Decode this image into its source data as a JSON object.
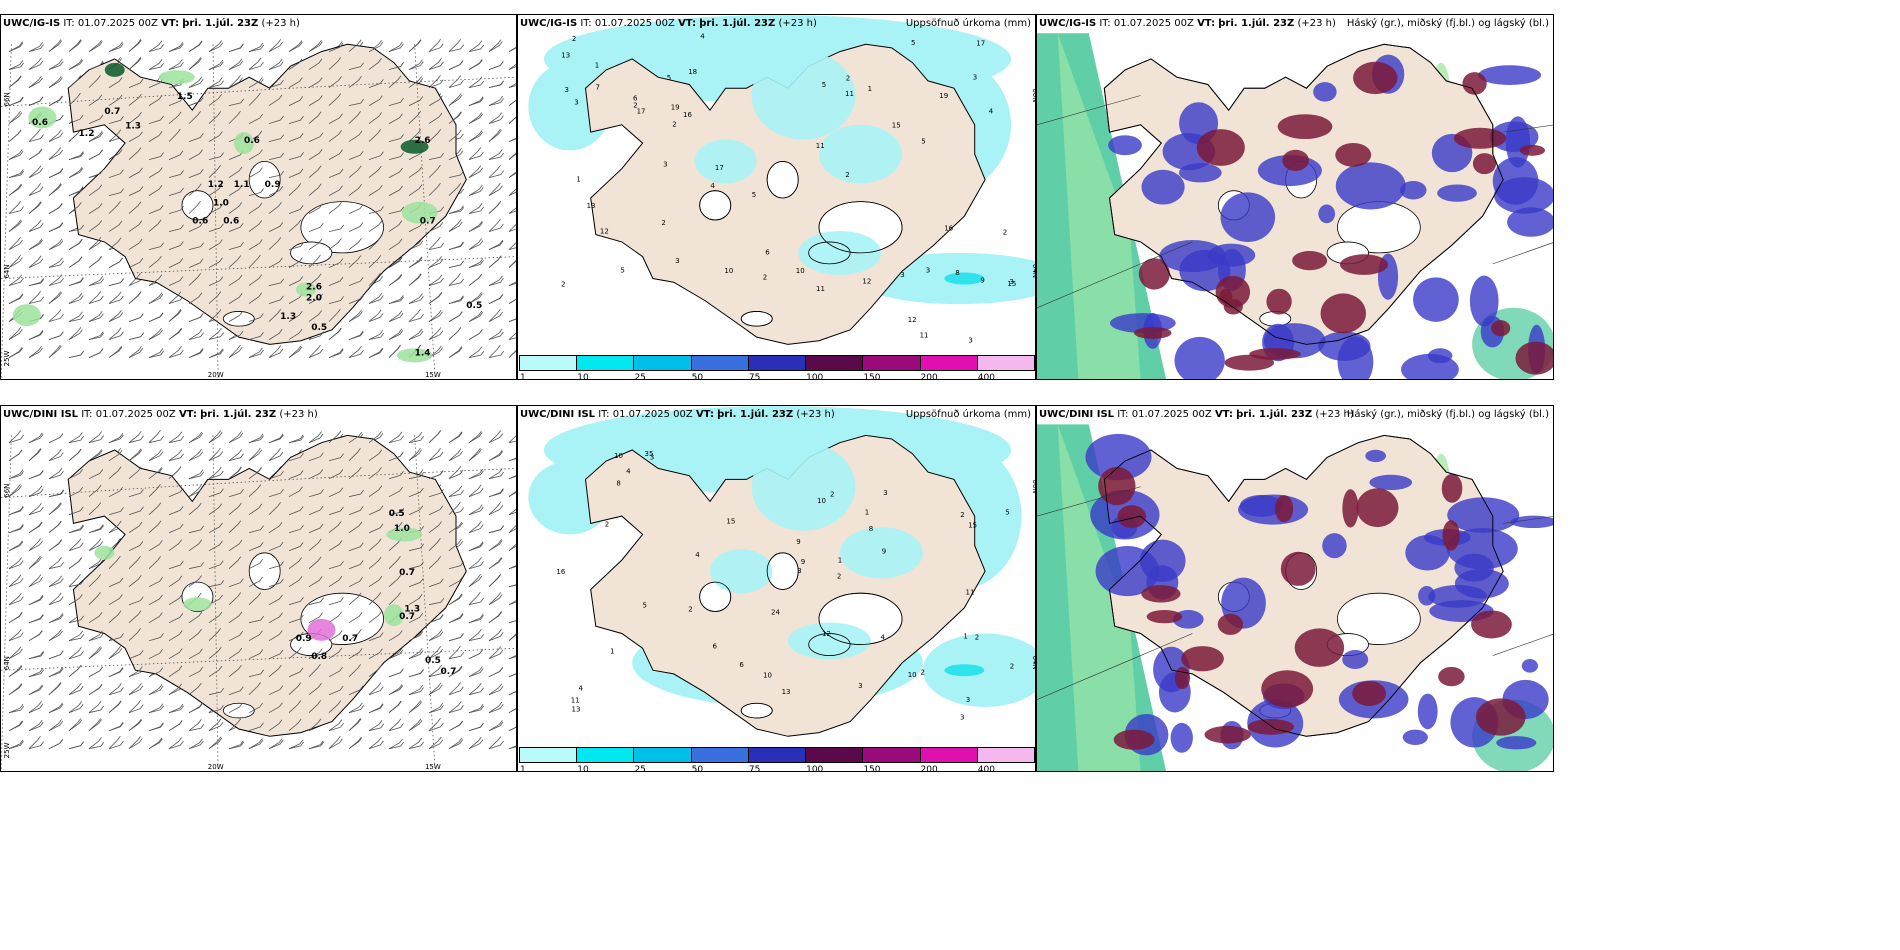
{
  "panels": [
    {
      "model_label": "UWC/IG-IS",
      "it_label": "IT:",
      "it_value": "01.07.2025 00Z",
      "vt_label": "VT:",
      "vt_value": "þri. 1.júl. 23Z",
      "lead": "(+23 h)",
      "right_title": "",
      "variant": "wind",
      "labels": [
        "0.6",
        "1.2",
        "0.7",
        "1.3",
        "1.5",
        "0.6",
        "2.6",
        "1.2",
        "1.1",
        "0.9",
        "1.0",
        "0.6",
        "0.6",
        "0.7",
        "2.6",
        "2.0",
        "1.3",
        "0.5",
        "0.5",
        "1.4"
      ],
      "axis": {
        "lat_top": "66N",
        "lat_mid": "64N",
        "lon_left": "25W",
        "lon_a": "20W",
        "lon_b": "15W"
      }
    },
    {
      "model_label": "UWC/IG-IS",
      "it_label": "IT:",
      "it_value": "01.07.2025 00Z",
      "vt_label": "VT:",
      "vt_value": "þri. 1.júl. 23Z",
      "lead": "(+23 h)",
      "right_title": "Uppsöfnuð úrkoma (mm)",
      "variant": "precip",
      "labels": [
        "1",
        "1",
        "2",
        "2",
        "2",
        "2",
        "3",
        "3",
        "4",
        "6",
        "2",
        "3",
        "13",
        "17",
        "16",
        "18",
        "13",
        "12",
        "2",
        "5",
        "3",
        "3",
        "2",
        "5",
        "3",
        "4",
        "5",
        "7",
        "3",
        "3",
        "9",
        "10",
        "2",
        "12",
        "5",
        "5",
        "17",
        "17",
        "19",
        "15",
        "15",
        "11",
        "8",
        "11",
        "11",
        "12",
        "19",
        "1",
        "6",
        "10",
        "16",
        "11",
        "2",
        "3",
        "4",
        "5"
      ],
      "axis": {
        "lat_top": "66N",
        "lat_mid": "64N"
      }
    },
    {
      "model_label": "UWC/IG-IS",
      "it_label": "IT:",
      "it_value": "01.07.2025 00Z",
      "vt_label": "VT:",
      "vt_value": "þri. 1.júl. 23Z",
      "lead": "(+23 h)",
      "right_title": "Háský (gr.), miðský (fj.bl.) og lágský (bl.)",
      "variant": "cloud",
      "labels": []
    },
    {
      "model_label": "UWC/DINI ISL",
      "it_label": "IT:",
      "it_value": "01.07.2025 00Z",
      "vt_label": "VT:",
      "vt_value": "þri. 1.júl. 23Z",
      "lead": "(+23 h)",
      "right_title": "",
      "variant": "wind",
      "labels": [
        "0.5",
        "1.0",
        "0.7",
        "1.3",
        "0.7",
        "0.5",
        "0.7",
        "0.9",
        "0.8",
        "0.7"
      ],
      "axis": {
        "lat_top": "66N",
        "lat_mid": "64N",
        "lon_left": "25W",
        "lon_a": "20W",
        "lon_b": "15W"
      }
    },
    {
      "model_label": "UWC/DINI ISL",
      "it_label": "IT:",
      "it_value": "01.07.2025 00Z",
      "vt_label": "VT:",
      "vt_value": "þri. 1.júl. 23Z",
      "lead": "(+23 h)",
      "right_title": "Uppsöfnuð úrkoma (mm)",
      "variant": "precip",
      "labels": [
        "1",
        "1",
        "1",
        "2",
        "2",
        "2",
        "9",
        "8",
        "2",
        "4",
        "3",
        "12",
        "11",
        "13",
        "10",
        "6",
        "3",
        "2",
        "3",
        "4",
        "5",
        "3",
        "4",
        "15",
        "35",
        "16",
        "10",
        "3",
        "8",
        "9",
        "10",
        "11",
        "9",
        "15",
        "13",
        "10",
        "6",
        "24",
        "4",
        "2",
        "1",
        "2",
        "3",
        "5",
        "2"
      ],
      "axis": {
        "lat_top": "66N",
        "lat_mid": "64N"
      }
    },
    {
      "model_label": "UWC/DINI ISL",
      "it_label": "IT:",
      "it_value": "01.07.2025 00Z",
      "vt_label": "VT:",
      "vt_value": "þri. 1.júl. 23Z",
      "lead": "(+23 h)",
      "right_title": "Háský (gr.), miðský (fj.bl.) og lágský (bl.)",
      "variant": "cloud",
      "labels": []
    }
  ],
  "colorbar": {
    "values": [
      "1",
      "10",
      "25",
      "50",
      "75",
      "100",
      "150",
      "200",
      "400"
    ],
    "colors": [
      "#b9fbfb",
      "#00e8ef",
      "#00bfe8",
      "#3a6fe0",
      "#2a2fb8",
      "#5a0a4a",
      "#9a0a7a",
      "#e010b0",
      "#f4b8ee"
    ]
  },
  "colors": {
    "land": "#f1e3d6",
    "ice": "#ffffff",
    "precip_light": "#a9f3f6",
    "precip_mid": "#2ee3ec",
    "cloud_high": "#2bbf8a",
    "cloud_mid": "#3a3ac8",
    "cloud_low": "#7a1a3a",
    "wind_green": "#9ce39c",
    "wind_dark": "#0a5a2a"
  }
}
